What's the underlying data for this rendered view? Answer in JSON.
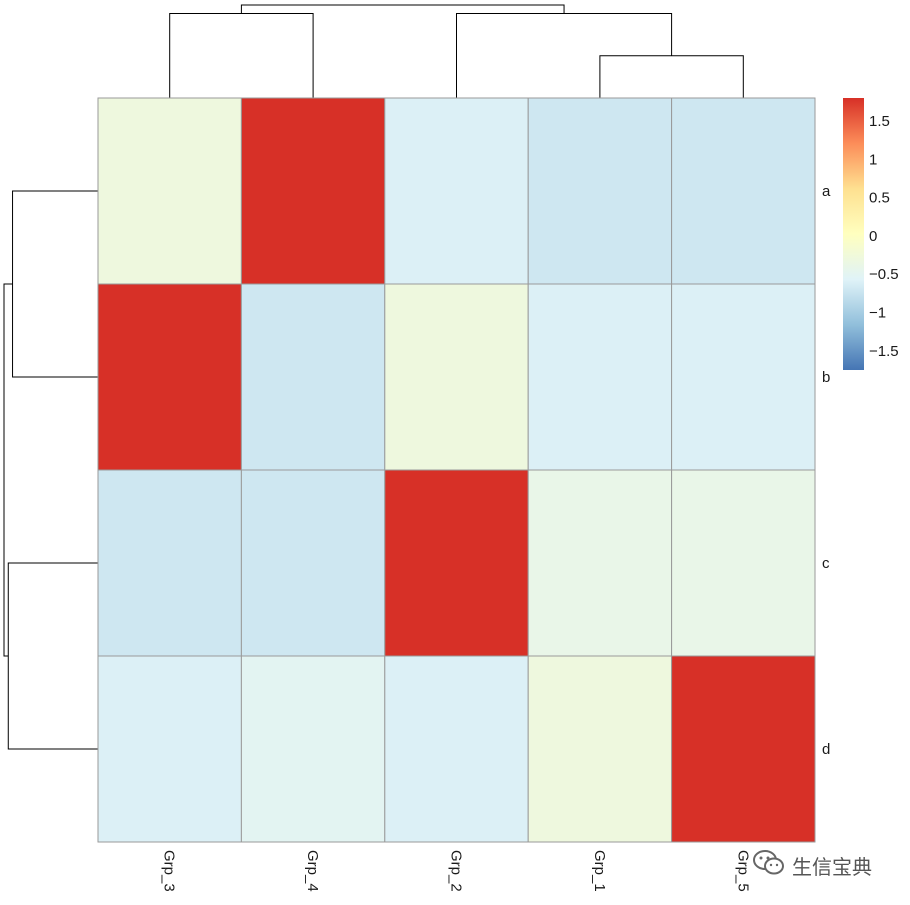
{
  "chart_data": {
    "type": "heatmap",
    "title": "",
    "rows": [
      "a",
      "b",
      "c",
      "d"
    ],
    "columns": [
      "Grp_3",
      "Grp_4",
      "Grp_2",
      "Grp_1",
      "Grp_5"
    ],
    "values": [
      [
        -0.3,
        1.8,
        -0.6,
        -0.7,
        -0.7
      ],
      [
        1.8,
        -0.7,
        -0.3,
        -0.6,
        -0.6
      ],
      [
        -0.7,
        -0.7,
        1.8,
        -0.4,
        -0.4
      ],
      [
        -0.6,
        -0.5,
        -0.6,
        -0.3,
        1.8
      ]
    ],
    "color_scale": {
      "min": -1.75,
      "max": 1.8,
      "colors": [
        "#4575b4",
        "#91bfdb",
        "#e0f3f8",
        "#ffffbf",
        "#fee090",
        "#fc8d59",
        "#d73027"
      ],
      "ticks": [
        1.5,
        1,
        0.5,
        0,
        -0.5,
        -1,
        -1.5
      ],
      "tick_labels": [
        "1.5",
        "1",
        "0.5",
        "0",
        "−0.5",
        "−1",
        "−1.5"
      ]
    },
    "column_dendrogram": {
      "order": [
        "Grp_3",
        "Grp_4",
        "Grp_2",
        "Grp_1",
        "Grp_5"
      ],
      "merges": [
        {
          "left": "Grp_1",
          "right": "Grp_5",
          "height": 1.0
        },
        {
          "left": "Grp_3",
          "right": "Grp_4",
          "height": 2.0
        },
        {
          "left": "Grp_2",
          "right": "C1",
          "height": 2.0
        },
        {
          "left": "C2",
          "right": "C3",
          "height": 2.2
        }
      ]
    },
    "row_dendrogram": {
      "order": [
        "a",
        "b",
        "c",
        "d"
      ],
      "merges": [
        {
          "left": "a",
          "right": "b",
          "height": 2.0
        },
        {
          "left": "c",
          "right": "d",
          "height": 2.1
        },
        {
          "left": "C1",
          "right": "C2",
          "height": 2.2
        }
      ]
    }
  },
  "watermark": {
    "icon": "wechat-icon",
    "text": "生信宝典"
  }
}
